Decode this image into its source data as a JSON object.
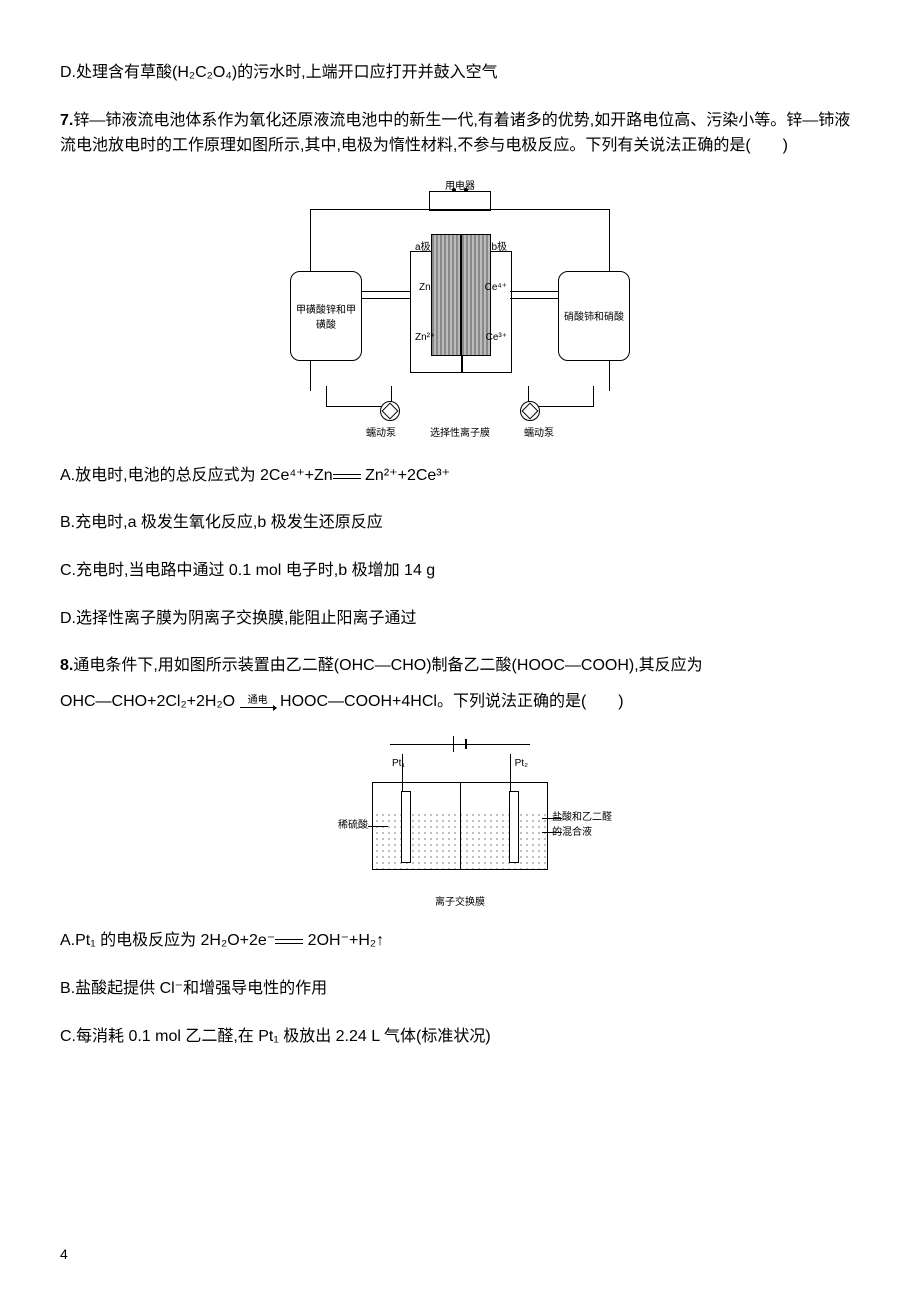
{
  "page_number": "4",
  "d_option": "D.处理含有草酸(H₂C₂O₄)的污水时,上端开口应打开并鼓入空气",
  "q7": {
    "stem1": "7.",
    "stem_text": "锌—铈液流电池体系作为氧化还原液流电池中的新生一代,有着诸多的优势,如开路电位高、污染小等。锌—铈液流电池放电时的工作原理如图所示,其中,电极为惰性材料,不参与电极反应。下列有关说法正确的是(　　)",
    "diagram": {
      "device_label": "用电器",
      "aLabel": "a极",
      "bLabel": "b极",
      "species_Zn": "Zn",
      "species_Zn2": "Zn²⁺",
      "species_Ce4": "Ce⁴⁺",
      "species_Ce3": "Ce³⁺",
      "tankL": "甲磺酸锌和甲磺酸",
      "tankR": "硝酸铈和硝酸",
      "pump": "蠕动泵",
      "membrane": "选择性离子膜"
    },
    "optA_pre": "A.放电时,电池的总反应式为 2Ce⁴⁺+Zn",
    "optA_post": " Zn²⁺+2Ce³⁺",
    "optB": "B.充电时,a 极发生氧化反应,b 极发生还原反应",
    "optC": "C.充电时,当电路中通过 0.1 mol 电子时,b 极增加 14 g",
    "optD": "D.选择性离子膜为阴离子交换膜,能阻止阳离子通过"
  },
  "q8": {
    "stem_bold": "8.",
    "stem_text": "通电条件下,用如图所示装置由乙二醛(OHC—CHO)制备乙二酸(HOOC—COOH),其反应为",
    "eqL": "OHC—CHO+2Cl₂+2H₂O",
    "over": "通电",
    "eqR": "HOOC—COOH+4HCl。下列说法正确的是(　　)",
    "diagram": {
      "pt1": "Pt₁",
      "pt2": "Pt₂",
      "leftLab": "稀硫酸",
      "rightLab": "盐酸和乙二醛的混合液",
      "membrane": "离子交换膜"
    },
    "optA_pre": "A.Pt₁ 的电极反应为 2H₂O+2e⁻",
    "optA_post": " 2OH⁻+H₂↑",
    "optB": "B.盐酸起提供 Cl⁻和增强导电性的作用",
    "optC": "C.每消耗 0.1 mol 乙二醛,在 Pt₁ 极放出 2.24 L 气体(标准状况)"
  }
}
